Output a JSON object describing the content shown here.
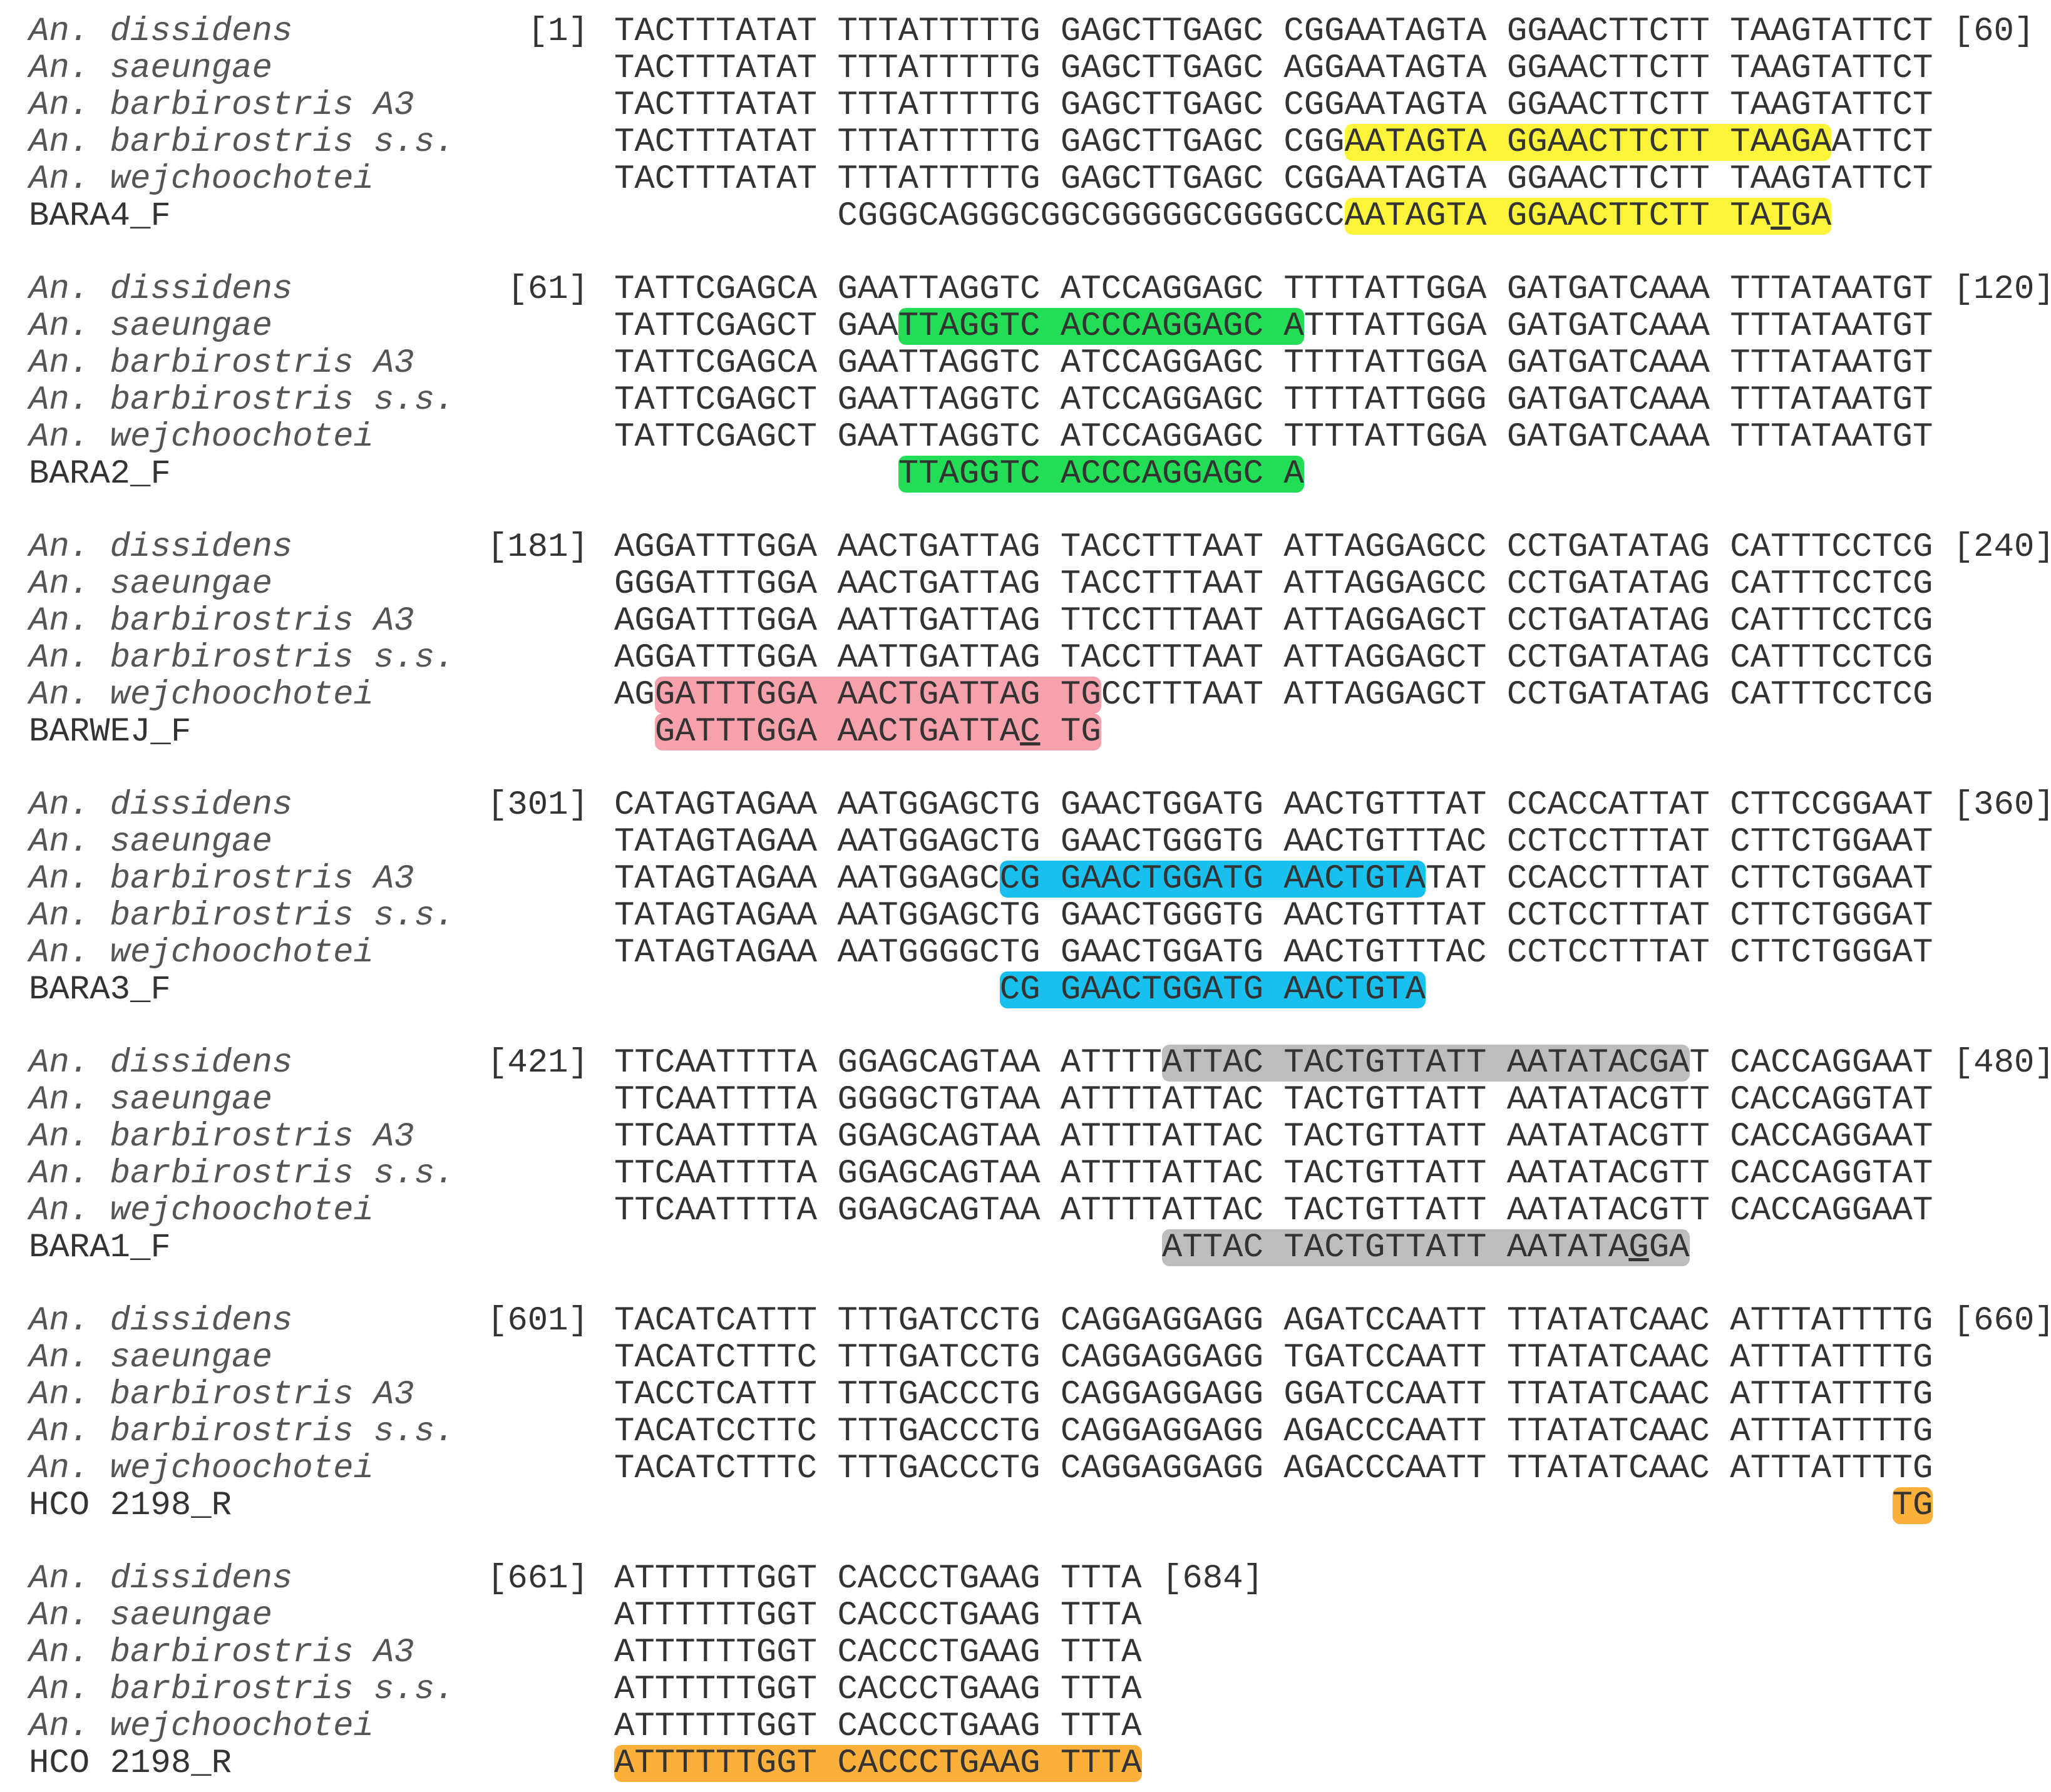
{
  "species": [
    "An. dissidens",
    "An. saeungae",
    "An. barbirostris A3",
    "An. barbirostris s.s.",
    "An. wejchoochotei"
  ],
  "blocks": [
    {
      "start": "[1]",
      "end": "[60]",
      "sequences": [
        [
          {
            "text": "TACTTTATAT TTTATTTTTG GAGCTTGAGC CGGAATAGTA GGAACTTCTT TAAGTATTCT"
          }
        ],
        [
          {
            "text": "TACTTTATAT TTTATTTTTG GAGCTTGAGC AGGAATAGTA GGAACTTCTT TAAGTATTCT"
          }
        ],
        [
          {
            "text": "TACTTTATAT TTTATTTTTG GAGCTTGAGC CGGAATAGTA GGAACTTCTT TAAGTATTCT"
          }
        ],
        [
          {
            "text": "TACTTTATAT TTTATTTTTG GAGCTTGAGC CGG"
          },
          {
            "text": "AATAGTA GGAACTTCTT TAAGA",
            "highlight": "#fbf43a"
          },
          {
            "text": "ATTCT"
          }
        ],
        [
          {
            "text": "TACTTTATAT TTTATTTTTG GAGCTTGAGC CGGAATAGTA GGAACTTCTT TAAGTATTCT"
          }
        ]
      ],
      "primer": {
        "name": "BARA4_F",
        "segments": [
          {
            "text": "           CGGGCAGGGCGGCGGGGGCGGGGCC"
          },
          {
            "text": "AATAGTA GGAACTTCTT TA",
            "highlight": "#fbf43a"
          },
          {
            "text": "T",
            "highlight": "#fbf43a",
            "underline": true
          },
          {
            "text": "GA",
            "highlight": "#fbf43a"
          }
        ]
      }
    },
    {
      "start": "[61]",
      "end": "[120]",
      "sequences": [
        [
          {
            "text": "TATTCGAGCA GAATTAGGTC ATCCAGGAGC TTTTATTGGA GATGATCAAA TTTATAATGT"
          }
        ],
        [
          {
            "text": "TATTCGAGCT GAA"
          },
          {
            "text": "TTAGGTC ACCCAGGAGC A",
            "highlight": "#22dd55"
          },
          {
            "text": "TTTATTGGA GATGATCAAA TTTATAATGT"
          }
        ],
        [
          {
            "text": "TATTCGAGCA GAATTAGGTC ATCCAGGAGC TTTTATTGGA GATGATCAAA TTTATAATGT"
          }
        ],
        [
          {
            "text": "TATTCGAGCT GAATTAGGTC ATCCAGGAGC TTTTATTGGG GATGATCAAA TTTATAATGT"
          }
        ],
        [
          {
            "text": "TATTCGAGCT GAATTAGGTC ATCCAGGAGC TTTTATTGGA GATGATCAAA TTTATAATGT"
          }
        ]
      ],
      "primer": {
        "name": "BARA2_F",
        "segments": [
          {
            "text": "              "
          },
          {
            "text": "TTAGGTC ACCCAGGAGC A",
            "highlight": "#22dd55"
          }
        ]
      }
    },
    {
      "start": "[181]",
      "end": "[240]",
      "sequences": [
        [
          {
            "text": "AGGATTTGGA AACTGATTAG TACCTTTAAT ATTAGGAGCC CCTGATATAG CATTTCCTCG"
          }
        ],
        [
          {
            "text": "GGGATTTGGA AACTGATTAG TACCTTTAAT ATTAGGAGCC CCTGATATAG CATTTCCTCG"
          }
        ],
        [
          {
            "text": "AGGATTTGGA AATTGATTAG TTCCTTTAAT ATTAGGAGCT CCTGATATAG CATTTCCTCG"
          }
        ],
        [
          {
            "text": "AGGATTTGGA AATTGATTAG TACCTTTAAT ATTAGGAGCT CCTGATATAG CATTTCCTCG"
          }
        ],
        [
          {
            "text": "AG"
          },
          {
            "text": "GATTTGGA AACTGATTAG TG",
            "highlight": "#f7a1ad"
          },
          {
            "text": "CCTTTAAT ATTAGGAGCT CCTGATATAG CATTTCCTCG"
          }
        ]
      ],
      "primer": {
        "name": "BARWEJ_F",
        "segments": [
          {
            "text": "  "
          },
          {
            "text": "GATTTGGA AACTGATTA",
            "highlight": "#f7a1ad"
          },
          {
            "text": "C",
            "highlight": "#f7a1ad",
            "underline": true
          },
          {
            "text": " TG",
            "highlight": "#f7a1ad"
          }
        ]
      }
    },
    {
      "start": "[301]",
      "end": "[360]",
      "sequences": [
        [
          {
            "text": "CATAGTAGAA AATGGAGCTG GAACTGGATG AACTGTTTAT CCACCATTAT CTTCCGGAAT"
          }
        ],
        [
          {
            "text": "TATAGTAGAA AATGGAGCTG GAACTGGGTG AACTGTTTAC CCTCCTTTAT CTTCTGGAAT"
          }
        ],
        [
          {
            "text": "TATAGTAGAA AATGGAGC"
          },
          {
            "text": "CG GAACTGGATG AACTGTA",
            "highlight": "#19c0ee"
          },
          {
            "text": "TAT CCACCTTTAT CTTCTGGAAT"
          }
        ],
        [
          {
            "text": "TATAGTAGAA AATGGAGCTG GAACTGGGTG AACTGTTTAT CCTCCTTTAT CTTCTGGGAT"
          }
        ],
        [
          {
            "text": "TATAGTAGAA AATGGGGCTG GAACTGGATG AACTGTTTAC CCTCCTTTAT CTTCTGGGAT"
          }
        ]
      ],
      "primer": {
        "name": "BARA3_F",
        "segments": [
          {
            "text": "                   "
          },
          {
            "text": "CG GAACTGGATG AACTGTA",
            "highlight": "#19c0ee"
          }
        ]
      }
    },
    {
      "start": "[421]",
      "end": "[480]",
      "sequences": [
        [
          {
            "text": "TTCAATTTTA GGAGCAGTAA ATTTT"
          },
          {
            "text": "ATTAC TACTGTTATT AATATACGA",
            "highlight": "#bdbdbd"
          },
          {
            "text": "T CACCAGGAAT"
          }
        ],
        [
          {
            "text": "TTCAATTTTA GGGGCTGTAA ATTTTATTAC TACTGTTATT AATATACGTT CACCAGGTAT"
          }
        ],
        [
          {
            "text": "TTCAATTTTA GGAGCAGTAA ATTTTATTAC TACTGTTATT AATATACGTT CACCAGGAAT"
          }
        ],
        [
          {
            "text": "TTCAATTTTA GGAGCAGTAA ATTTTATTAC TACTGTTATT AATATACGTT CACCAGGTAT"
          }
        ],
        [
          {
            "text": "TTCAATTTTA GGAGCAGTAA ATTTTATTAC TACTGTTATT AATATACGTT CACCAGGAAT"
          }
        ]
      ],
      "primer": {
        "name": "BARA1_F",
        "segments": [
          {
            "text": "                           "
          },
          {
            "text": "ATTAC TACTGTTATT AATATA",
            "highlight": "#bdbdbd"
          },
          {
            "text": "G",
            "highlight": "#bdbdbd",
            "underline": true
          },
          {
            "text": "GA",
            "highlight": "#bdbdbd"
          }
        ]
      }
    },
    {
      "start": "[601]",
      "end": "[660]",
      "sequences": [
        [
          {
            "text": "TACATCATTT TTTGATCCTG CAGGAGGAGG AGATCCAATT TTATATCAAC ATTTATTTTG"
          }
        ],
        [
          {
            "text": "TACATCTTTC TTTGATCCTG CAGGAGGAGG TGATCCAATT TTATATCAAC ATTTATTTTG"
          }
        ],
        [
          {
            "text": "TACCTCATTT TTTGACCCTG CAGGAGGAGG GGATCCAATT TTATATCAAC ATTTATTTTG"
          }
        ],
        [
          {
            "text": "TACATCCTTC TTTGACCCTG CAGGAGGAGG AGACCCAATT TTATATCAAC ATTTATTTTG"
          }
        ],
        [
          {
            "text": "TACATCTTTC TTTGACCCTG CAGGAGGAGG AGACCCAATT TTATATCAAC ATTTATTTTG"
          }
        ]
      ],
      "primer": {
        "name": "HCO 2198_R",
        "segments": [
          {
            "text": "                                                               "
          },
          {
            "text": "TG",
            "highlight": "#fbb03b"
          }
        ]
      }
    },
    {
      "start": "[661]",
      "end": "[684]",
      "sequences": [
        [
          {
            "text": "ATTTTTTGGT CACCCTGAAG TTTA"
          }
        ],
        [
          {
            "text": "ATTTTTTGGT CACCCTGAAG TTTA"
          }
        ],
        [
          {
            "text": "ATTTTTTGGT CACCCTGAAG TTTA"
          }
        ],
        [
          {
            "text": "ATTTTTTGGT CACCCTGAAG TTTA"
          }
        ],
        [
          {
            "text": "ATTTTTTGGT CACCCTGAAG TTTA"
          }
        ]
      ],
      "primer": {
        "name": "HCO 2198_R",
        "segments": [
          {
            "text": "ATTTTTTGGT CACCCTGAAG TTTA",
            "highlight": "#fbb03b"
          }
        ]
      }
    }
  ]
}
